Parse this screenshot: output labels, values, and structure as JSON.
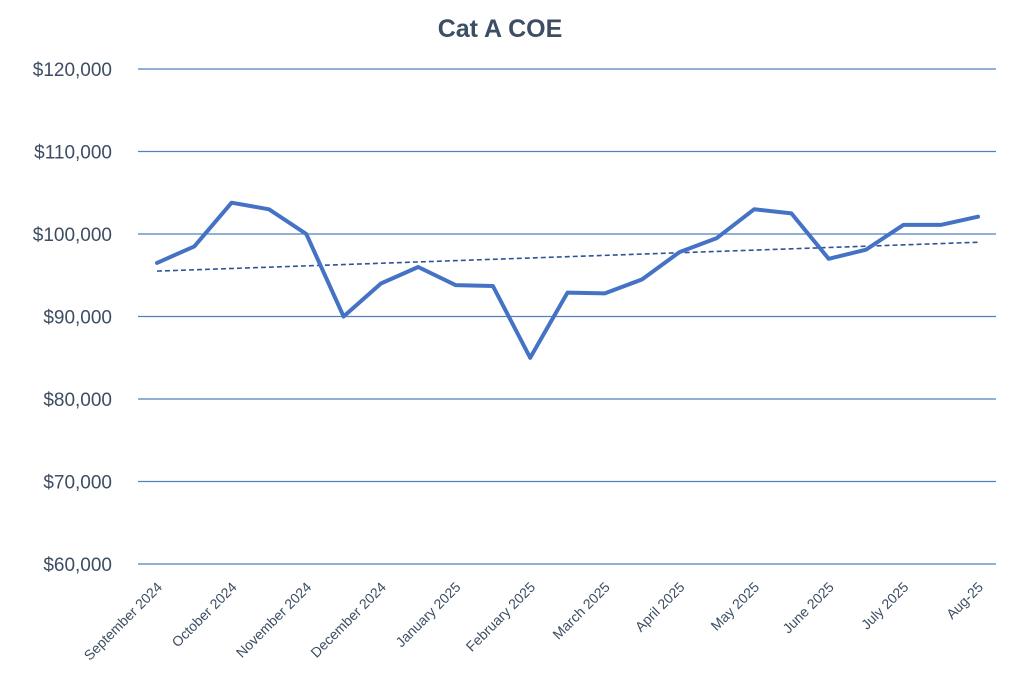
{
  "chart_data": {
    "type": "line",
    "title": "Cat A COE",
    "xlabel": "",
    "ylabel": "",
    "ylim": [
      60000,
      120000
    ],
    "yticks": [
      60000,
      70000,
      80000,
      90000,
      100000,
      110000,
      120000
    ],
    "ytick_labels": [
      "$60,000",
      "$70,000",
      "$80,000",
      "$90,000",
      "$100,000",
      "$110,000",
      "$120,000"
    ],
    "x_points": 23,
    "xtick_labels": [
      {
        "label": "September 2024",
        "index": 0
      },
      {
        "label": "October 2024",
        "index": 2
      },
      {
        "label": "November 2024",
        "index": 4
      },
      {
        "label": "December 2024",
        "index": 6
      },
      {
        "label": "January 2025",
        "index": 8
      },
      {
        "label": "February 2025",
        "index": 10
      },
      {
        "label": "March 2025",
        "index": 12
      },
      {
        "label": "April 2025",
        "index": 14
      },
      {
        "label": "May 2025",
        "index": 16
      },
      {
        "label": "June 2025",
        "index": 18
      },
      {
        "label": "July 2025",
        "index": 20
      },
      {
        "label": "Aug-25",
        "index": 22
      }
    ],
    "grid": true,
    "series": [
      {
        "values": [
          96500,
          98500,
          103800,
          103000,
          100000,
          90000,
          94000,
          96000,
          93800,
          93700,
          85000,
          92900,
          92800,
          94500,
          97800,
          99500,
          103000,
          102500,
          97000,
          98100,
          101100,
          101100,
          102100
        ],
        "color": "#4472C4"
      }
    ],
    "trendline": {
      "type": "linear",
      "style": "dashed",
      "start": 95500,
      "end": 99000,
      "color": "#2F5597"
    },
    "colors": {
      "gridline": "#4F81BD",
      "text": "#3D4D63",
      "title": "#3D4D63"
    }
  }
}
